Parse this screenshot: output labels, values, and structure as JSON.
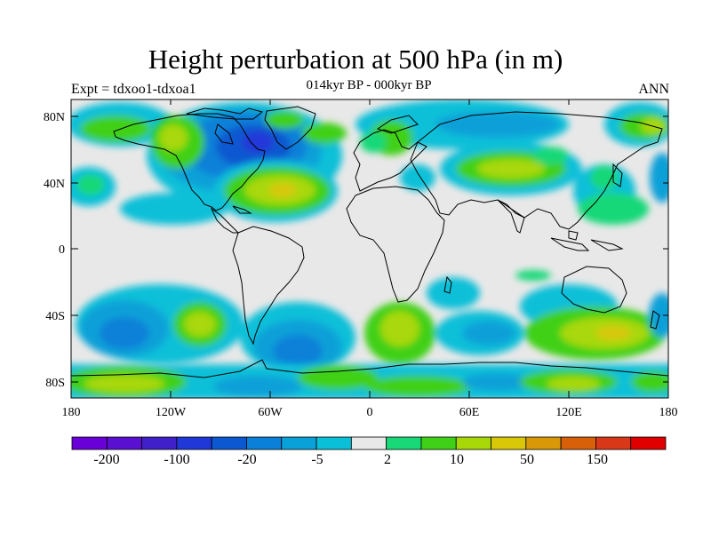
{
  "title": "Height perturbation at 500 hPa (in m)",
  "subtitle": "014kyr BP - 000kyr BP",
  "left_label": "Expt = tdxoo1-tdxoa1",
  "right_label": "ANN",
  "axes": {
    "lon_ticks": [
      "180",
      "120W",
      "60W",
      "0",
      "60E",
      "120E",
      "180"
    ],
    "lat_ticks": [
      "80N",
      "40N",
      "0",
      "40S",
      "80S"
    ]
  },
  "colorbar": {
    "colors": [
      "#6a00d8",
      "#5a10d0",
      "#4020c8",
      "#2038d8",
      "#0c58d0",
      "#0a80d8",
      "#0aa0d8",
      "#0ac0d8",
      "#e8e8e8",
      "#18d878",
      "#40d018",
      "#a8d808",
      "#d8c808",
      "#d89808",
      "#d86008",
      "#d83818",
      "#e00000"
    ],
    "labels": [
      "-200",
      "-100",
      "-20",
      "-5",
      "2",
      "10",
      "50",
      "150"
    ]
  },
  "legend_colors": {
    "neutral": "#e8e8e8",
    "weak_positive": "#18d878",
    "positive": "#40d018",
    "strong_positive": "#a8d808",
    "peak_positive": "#d8c808",
    "weak_negative": "#0ac0d8",
    "negative": "#0aa0d8",
    "strong_negative": "#0a80d8",
    "peak_negative": "#2038d8"
  }
}
